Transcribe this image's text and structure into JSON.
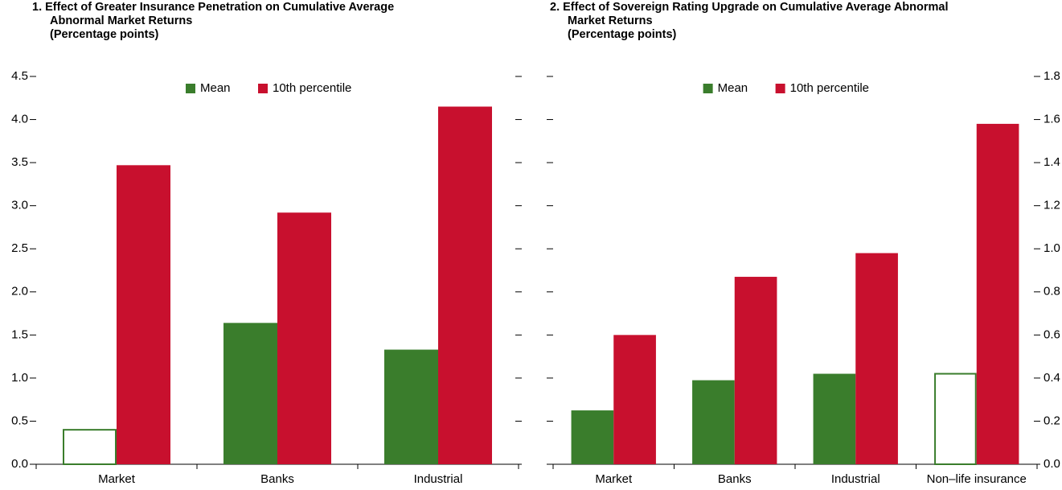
{
  "chart_data": [
    {
      "type": "bar",
      "title": [
        "1. Effect of Greater Insurance Penetration on Cumulative Average",
        "Abnormal Market Returns"
      ],
      "subtitle": "(Percentage points)",
      "categories": [
        "Market",
        "Banks",
        "Industrial"
      ],
      "series": [
        {
          "name": "Mean",
          "color": "#3a7d2c",
          "values": [
            0.4,
            1.64,
            1.33
          ],
          "hollow": [
            true,
            false,
            false
          ]
        },
        {
          "name": "10th percentile",
          "color": "#c8102e",
          "values": [
            3.47,
            2.92,
            4.15
          ]
        }
      ],
      "ylim": [
        0,
        4.5
      ],
      "yticks": [
        {
          "value": 0,
          "label": "0.0"
        },
        0.5,
        {
          "value": 1,
          "label": "1.0"
        },
        1.5,
        {
          "value": 2,
          "label": "2.0"
        },
        2.5,
        {
          "value": 3,
          "label": "3.0"
        },
        3.5,
        {
          "value": 4,
          "label": "4.0"
        },
        4.5
      ],
      "ytick_labels_side": "left",
      "legend": "top"
    },
    {
      "type": "bar",
      "title": [
        "2. Effect of Sovereign Rating Upgrade on Cumulative Average Abnormal",
        "Market Returns"
      ],
      "subtitle": "(Percentage points)",
      "categories": [
        "Market",
        "Banks",
        "Industrial",
        "Non–life insurance"
      ],
      "series": [
        {
          "name": "Mean",
          "color": "#3a7d2c",
          "values": [
            0.25,
            0.39,
            0.42,
            0.42
          ],
          "hollow": [
            false,
            false,
            false,
            true
          ]
        },
        {
          "name": "10th percentile",
          "color": "#c8102e",
          "values": [
            0.6,
            0.87,
            0.98,
            1.58
          ]
        }
      ],
      "ylim": [
        0,
        1.8
      ],
      "yticks": [
        {
          "value": 0,
          "label": "0.0"
        },
        0.2,
        0.4,
        0.6,
        0.8,
        {
          "value": 1,
          "label": "1.0"
        },
        1.2,
        1.4,
        1.6,
        1.8
      ],
      "ytick_labels_side": "right",
      "legend": "top"
    }
  ]
}
